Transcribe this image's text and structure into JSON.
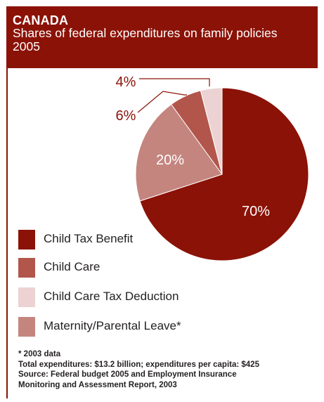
{
  "header": {
    "title": "CANADA",
    "subtitle_line1": "Shares of federal expenditures on family policies",
    "subtitle_line2": "2005"
  },
  "chart_data": {
    "type": "pie",
    "title": "CANADA",
    "subtitle": "Shares of federal expenditures on family policies 2005",
    "categories": [
      "Child Tax Benefit",
      "Maternity/Parental Leave*",
      "Child Care",
      "Child Care Tax Deduction"
    ],
    "values": [
      70,
      20,
      6,
      4
    ],
    "labels": [
      "70%",
      "20%",
      "6%",
      "4%"
    ],
    "colors": [
      "#8b1207",
      "#c4857f",
      "#b2554b",
      "#ecd2d2"
    ],
    "legend_position": "bottom-left"
  },
  "legend": [
    {
      "label": "Child Tax Benefit",
      "color": "#8b1207"
    },
    {
      "label": "Child Care",
      "color": "#b2554b"
    },
    {
      "label": "Child Care Tax Deduction",
      "color": "#ecd2d2"
    },
    {
      "label": "Maternity/Parental Leave*",
      "color": "#c4857f"
    }
  ],
  "notes": {
    "line1": "* 2003 data",
    "line2": "Total expenditures: $13.2 billion; expenditures per capita: $425",
    "line3": "Source: Federal budget 2005 and Employment Insurance",
    "line4": "Monitoring and Assessment Report, 2003"
  },
  "colors": {
    "brand": "#8b1207",
    "leader_line": "#8b1207"
  }
}
